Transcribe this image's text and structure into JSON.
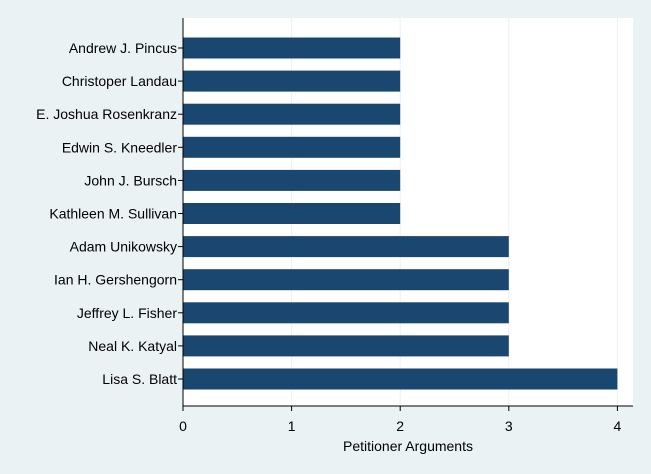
{
  "chart_data": {
    "type": "bar",
    "orientation": "horizontal",
    "categories": [
      "Andrew J. Pincus",
      "Christoper Landau",
      "E. Joshua Rosenkranz",
      "Edwin S. Kneedler",
      "John J. Bursch",
      "Kathleen M. Sullivan",
      "Adam Unikowsky",
      "Ian H. Gershengorn",
      "Jeffrey L. Fisher",
      "Neal K. Katyal",
      "Lisa S. Blatt"
    ],
    "values": [
      2,
      2,
      2,
      2,
      2,
      2,
      3,
      3,
      3,
      3,
      4
    ],
    "xlabel": "Petitioner Arguments",
    "ylabel": "",
    "title": "",
    "xlim": [
      0,
      4
    ],
    "xticks": [
      "0",
      "1",
      "2",
      "3",
      "4"
    ],
    "grid": true,
    "colors": {
      "bar": "#1a476f",
      "background": "#eaf2f3",
      "plot_background": "#ffffff",
      "grid": "#eaf2f3"
    }
  }
}
